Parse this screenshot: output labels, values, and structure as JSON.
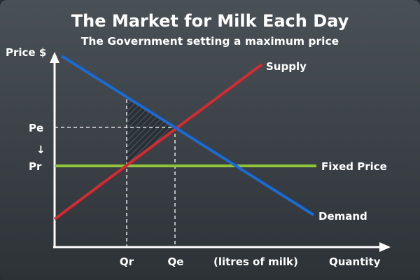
{
  "title": "The Market for Milk Each Day",
  "subtitle": "The Government setting a maximum price",
  "axes": {
    "y_label": "Price $",
    "x_label": "Quantity",
    "x_unit": "(litres of milk)",
    "arrow_glyph": "↓"
  },
  "price_marks": {
    "pe": "Pe",
    "pr": "Pr"
  },
  "quantity_marks": {
    "qr": "Qr",
    "qe": "Qe"
  },
  "curves": {
    "supply": {
      "label": "Supply",
      "color": "#d42a32"
    },
    "demand": {
      "label": "Demand",
      "color": "#1b6bd6"
    },
    "fixed_price": {
      "label": "Fixed Price",
      "color": "#8fc43a"
    }
  },
  "colors": {
    "axis": "#ffffff",
    "guide": "#ffffff",
    "deadweight_fill": "#2a3036",
    "deadweight_hatch": "#4f5960"
  }
}
